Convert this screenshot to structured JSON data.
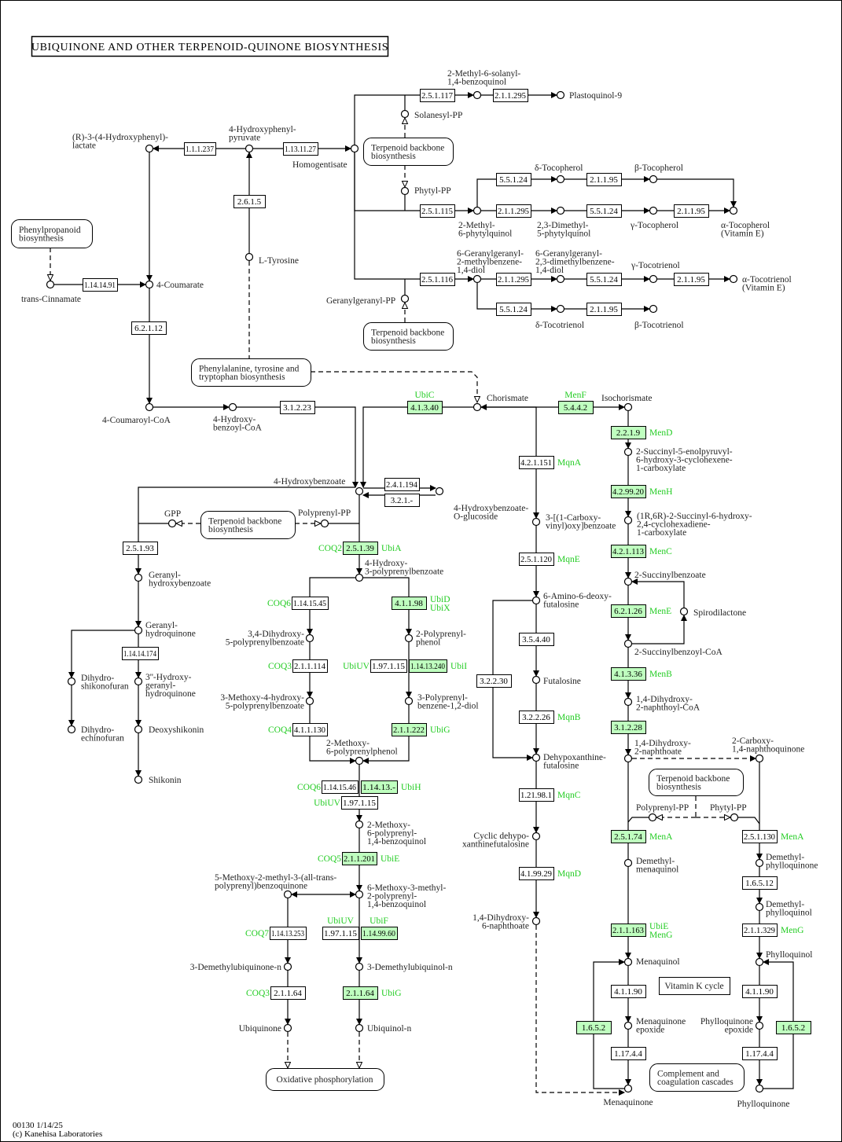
{
  "title": "UBIQUINONE AND OTHER TERPENOID-QUINONE BIOSYNTHESIS",
  "footer": {
    "id_date": "00130 1/14/25",
    "copyright": "(c) Kanehisa Laboratories"
  },
  "colors": {
    "highlight_fill": "#bfffbf",
    "gene_text": "#22cc22",
    "line": "#000000",
    "border": "#000000"
  },
  "enzymes": [
    {
      "ec": "1.1.1.237",
      "highlighted": false,
      "genes": []
    },
    {
      "ec": "1.13.11.27",
      "highlighted": false,
      "genes": []
    },
    {
      "ec": "2.6.1.5",
      "highlighted": false,
      "genes": []
    },
    {
      "ec": "1.14.14.91",
      "highlighted": false,
      "genes": []
    },
    {
      "ec": "6.2.1.12",
      "highlighted": false,
      "genes": []
    },
    {
      "ec": "3.1.2.23",
      "highlighted": false,
      "genes": []
    },
    {
      "ec": "4.1.3.40",
      "highlighted": true,
      "genes": [
        "UbiC"
      ]
    },
    {
      "ec": "5.4.4.2",
      "highlighted": true,
      "genes": [
        "MenF"
      ]
    },
    {
      "ec": "2.5.1.117",
      "highlighted": false,
      "genes": []
    },
    {
      "ec": "2.1.1.295",
      "highlighted": false,
      "genes": []
    },
    {
      "ec": "2.5.1.115",
      "highlighted": false,
      "genes": []
    },
    {
      "ec": "2.1.1.295",
      "highlighted": false,
      "genes": []
    },
    {
      "ec": "5.5.1.24",
      "highlighted": false,
      "genes": []
    },
    {
      "ec": "2.1.1.95",
      "highlighted": false,
      "genes": []
    },
    {
      "ec": "5.5.1.24",
      "highlighted": false,
      "genes": []
    },
    {
      "ec": "2.1.1.95",
      "highlighted": false,
      "genes": []
    },
    {
      "ec": "2.5.1.116",
      "highlighted": false,
      "genes": []
    },
    {
      "ec": "2.1.1.295",
      "highlighted": false,
      "genes": []
    },
    {
      "ec": "5.5.1.24",
      "highlighted": false,
      "genes": []
    },
    {
      "ec": "2.1.1.95",
      "highlighted": false,
      "genes": []
    },
    {
      "ec": "5.5.1.24",
      "highlighted": false,
      "genes": []
    },
    {
      "ec": "2.1.1.95",
      "highlighted": false,
      "genes": []
    },
    {
      "ec": "2.4.1.194",
      "highlighted": false,
      "genes": []
    },
    {
      "ec": "3.2.1.-",
      "highlighted": false,
      "genes": []
    },
    {
      "ec": "2.5.1.39",
      "highlighted": true,
      "genes": [
        "COQ2",
        "UbiA"
      ]
    },
    {
      "ec": "2.5.1.93",
      "highlighted": false,
      "genes": []
    },
    {
      "ec": "1.14.15.45",
      "highlighted": false,
      "genes": [
        "COQ6"
      ]
    },
    {
      "ec": "4.1.1.98",
      "highlighted": true,
      "genes": [
        "UbiD",
        "UbiX"
      ]
    },
    {
      "ec": "1.14.14.174",
      "highlighted": false,
      "genes": []
    },
    {
      "ec": "2.1.1.114",
      "highlighted": false,
      "genes": [
        "COQ3"
      ]
    },
    {
      "ec": "1.97.1.15",
      "highlighted": false,
      "genes": [
        "UbiUV"
      ]
    },
    {
      "ec": "1.14.13.240",
      "highlighted": true,
      "genes": [
        "UbiI"
      ]
    },
    {
      "ec": "4.1.1.130",
      "highlighted": false,
      "genes": [
        "COQ4"
      ]
    },
    {
      "ec": "2.1.1.222",
      "highlighted": true,
      "genes": [
        "UbiG"
      ]
    },
    {
      "ec": "1.14.15.46",
      "highlighted": false,
      "genes": [
        "COQ6"
      ]
    },
    {
      "ec": "1.14.13.-",
      "highlighted": true,
      "genes": [
        "UbiH"
      ]
    },
    {
      "ec": "1.97.1.15",
      "highlighted": false,
      "genes": [
        "UbiUV"
      ]
    },
    {
      "ec": "2.1.1.201",
      "highlighted": true,
      "genes": [
        "COQ5",
        "UbiE"
      ]
    },
    {
      "ec": "1.14.13.253",
      "highlighted": false,
      "genes": [
        "COQ7"
      ]
    },
    {
      "ec": "1.97.1.15",
      "highlighted": false,
      "genes": [
        "UbiUV"
      ]
    },
    {
      "ec": "1.14.99.60",
      "highlighted": true,
      "genes": [
        "UbiF"
      ]
    },
    {
      "ec": "2.1.1.64",
      "highlighted": false,
      "genes": [
        "COQ3"
      ]
    },
    {
      "ec": "2.1.1.64",
      "highlighted": true,
      "genes": [
        "UbiG"
      ]
    },
    {
      "ec": "4.2.1.151",
      "highlighted": false,
      "genes": [
        "MqnA"
      ]
    },
    {
      "ec": "2.5.1.120",
      "highlighted": false,
      "genes": [
        "MqnE"
      ]
    },
    {
      "ec": "3.5.4.40",
      "highlighted": false,
      "genes": []
    },
    {
      "ec": "3.2.2.30",
      "highlighted": false,
      "genes": []
    },
    {
      "ec": "3.2.2.26",
      "highlighted": false,
      "genes": [
        "MqnB"
      ]
    },
    {
      "ec": "1.21.98.1",
      "highlighted": false,
      "genes": [
        "MqnC"
      ]
    },
    {
      "ec": "4.1.99.29",
      "highlighted": false,
      "genes": [
        "MqnD"
      ]
    },
    {
      "ec": "2.2.1.9",
      "highlighted": true,
      "genes": [
        "MenD"
      ]
    },
    {
      "ec": "4.2.99.20",
      "highlighted": true,
      "genes": [
        "MenH"
      ]
    },
    {
      "ec": "4.2.1.113",
      "highlighted": true,
      "genes": [
        "MenC"
      ]
    },
    {
      "ec": "6.2.1.26",
      "highlighted": true,
      "genes": [
        "MenE"
      ]
    },
    {
      "ec": "4.1.3.36",
      "highlighted": true,
      "genes": [
        "MenB"
      ]
    },
    {
      "ec": "3.1.2.28",
      "highlighted": true,
      "genes": []
    },
    {
      "ec": "2.5.1.74",
      "highlighted": true,
      "genes": [
        "MenA"
      ]
    },
    {
      "ec": "2.5.1.130",
      "highlighted": false,
      "genes": [
        "MenA"
      ]
    },
    {
      "ec": "1.6.5.12",
      "highlighted": false,
      "genes": []
    },
    {
      "ec": "2.1.1.163",
      "highlighted": true,
      "genes": [
        "UbiE",
        "MenG"
      ]
    },
    {
      "ec": "2.1.1.329",
      "highlighted": false,
      "genes": [
        "MenG"
      ]
    },
    {
      "ec": "4.1.1.90",
      "highlighted": false,
      "genes": []
    },
    {
      "ec": "4.1.1.90",
      "highlighted": false,
      "genes": []
    },
    {
      "ec": "1.6.5.2",
      "highlighted": true,
      "genes": []
    },
    {
      "ec": "1.6.5.2",
      "highlighted": true,
      "genes": []
    },
    {
      "ec": "1.17.4.4",
      "highlighted": false,
      "genes": []
    },
    {
      "ec": "1.17.4.4",
      "highlighted": false,
      "genes": []
    }
  ],
  "compounds": [
    {
      "name": [
        "(R)-3-(4-Hydroxyphenyl)-",
        "lactate"
      ]
    },
    {
      "name": [
        "4-Hydroxyphenyl-",
        "pyruvate"
      ]
    },
    {
      "name": [
        "Homogentisate"
      ]
    },
    {
      "name": [
        "L-Tyrosine"
      ]
    },
    {
      "name": [
        "trans-Cinnamate"
      ]
    },
    {
      "name": [
        "4-Coumarate"
      ]
    },
    {
      "name": [
        "4-Coumaroyl-CoA"
      ]
    },
    {
      "name": [
        "4-Hydroxy-",
        "benzoyl-CoA"
      ]
    },
    {
      "name": [
        "Chorismate"
      ]
    },
    {
      "name": [
        "Isochorismate"
      ]
    },
    {
      "name": [
        "2-Methyl-6-solanyl-",
        "1,4-benzoquinol"
      ]
    },
    {
      "name": [
        "Plastoquinol-9"
      ]
    },
    {
      "name": [
        "Solanesyl-PP"
      ]
    },
    {
      "name": [
        "Phytyl-PP"
      ]
    },
    {
      "name": [
        "2-Methyl-",
        "6-phytylquinol"
      ]
    },
    {
      "name": [
        "2,3-Dimethyl-",
        "5-phytylquinol"
      ]
    },
    {
      "name": [
        "γ-Tocopherol"
      ]
    },
    {
      "name": [
        "α-Tocopherol",
        "(Vitamin E)"
      ]
    },
    {
      "name": [
        "δ-Tocopherol"
      ]
    },
    {
      "name": [
        "β-Tocopherol"
      ]
    },
    {
      "name": [
        "Geranylgeranyl-PP"
      ]
    },
    {
      "name": [
        "6-Geranylgeranyl-",
        "2-methylbenzene-",
        "1,4-diol"
      ]
    },
    {
      "name": [
        "6-Geranylgeranyl-",
        "2,3-dimethylbenzene-",
        "1,4-diol"
      ]
    },
    {
      "name": [
        "γ-Tocotrienol"
      ]
    },
    {
      "name": [
        "α-Tocotrienol",
        "(Vitamin E)"
      ]
    },
    {
      "name": [
        "δ-Tocotrienol"
      ]
    },
    {
      "name": [
        "β-Tocotrienol"
      ]
    },
    {
      "name": [
        "4-Hydroxybenzoate"
      ]
    },
    {
      "name": [
        "4-Hydroxybenzoate-",
        "O-glucoside"
      ]
    },
    {
      "name": [
        "GPP"
      ]
    },
    {
      "name": [
        "Polyprenyl-PP"
      ]
    },
    {
      "name": [
        "Geranyl-",
        "hydroxybenzoate"
      ]
    },
    {
      "name": [
        "4-Hydroxy-",
        "3-polyprenylbenzoate"
      ]
    },
    {
      "name": [
        "Geranyl-",
        "hydroquinone"
      ]
    },
    {
      "name": [
        "Dihydro-",
        "shikonofuran"
      ]
    },
    {
      "name": [
        "3''-Hydroxy-",
        "geranyl-",
        "hydroquinone"
      ]
    },
    {
      "name": [
        "Dihydro-",
        "echinofuran"
      ]
    },
    {
      "name": [
        "Deoxyshikonin"
      ]
    },
    {
      "name": [
        "Shikonin"
      ]
    },
    {
      "name": [
        "3,4-Dihydroxy-",
        "5-polyprenylbenzoate"
      ]
    },
    {
      "name": [
        "2-Polyprenyl-",
        "phenol"
      ]
    },
    {
      "name": [
        "3-Methoxy-4-hydroxy-",
        "5-polyprenylbenzoate"
      ]
    },
    {
      "name": [
        "3-Polyprenyl-",
        "benzene-1,2-diol"
      ]
    },
    {
      "name": [
        "2-Methoxy-",
        "6-polyprenylphenol"
      ]
    },
    {
      "name": [
        "2-Methoxy-",
        "6-polyprenyl-",
        "1,4-benzoquinol"
      ]
    },
    {
      "name": [
        "5-Methoxy-2-methyl-3-(all-trans-",
        "polyprenyl)benzoquinone"
      ]
    },
    {
      "name": [
        "6-Methoxy-3-methyl-",
        "2-polyprenyl-",
        "1,4-benzoquinol"
      ]
    },
    {
      "name": [
        "3-Demethylubiquinone-n"
      ]
    },
    {
      "name": [
        "3-Demethylubiquinol-n"
      ]
    },
    {
      "name": [
        "Ubiquinone"
      ]
    },
    {
      "name": [
        "Ubiquinol-n"
      ]
    },
    {
      "name": [
        "3-[(1-Carboxy-",
        "vinyl)oxy]benzoate"
      ]
    },
    {
      "name": [
        "6-Amino-6-deoxy-",
        "futalosine"
      ]
    },
    {
      "name": [
        "Futalosine"
      ]
    },
    {
      "name": [
        "Dehypoxanthine-",
        "futalosine"
      ]
    },
    {
      "name": [
        "Cyclic dehypo-",
        "xanthinefutalosine"
      ]
    },
    {
      "name": [
        "1,4-Dihydroxy-",
        "6-naphthoate"
      ]
    },
    {
      "name": [
        "2-Succinyl-5-enolpyruvyl-",
        "6-hydroxy-3-cyclohexene-",
        "1-carboxylate"
      ]
    },
    {
      "name": [
        "(1R,6R)-2-Succinyl-6-hydroxy-",
        "2,4-cyclohexadiene-",
        "1-carboxylate"
      ]
    },
    {
      "name": [
        "2-Succinylbenzoate"
      ]
    },
    {
      "name": [
        "Spirodilactone"
      ]
    },
    {
      "name": [
        "2-Succinylbenzoyl-CoA"
      ]
    },
    {
      "name": [
        "1,4-Dihydroxy-",
        "2-naphthoyl-CoA"
      ]
    },
    {
      "name": [
        "1,4-Dihydroxy-",
        "2-naphthoate"
      ]
    },
    {
      "name": [
        "2-Carboxy-",
        "1,4-naphthoquinone"
      ]
    },
    {
      "name": [
        "Polyprenyl-PP"
      ]
    },
    {
      "name": [
        "Phytyl-PP"
      ]
    },
    {
      "name": [
        "Demethyl-",
        "menaquinol"
      ]
    },
    {
      "name": [
        "Demethyl-",
        "phylloquinone"
      ]
    },
    {
      "name": [
        "Demethyl-",
        "phylloquinol"
      ]
    },
    {
      "name": [
        "Menaquinol"
      ]
    },
    {
      "name": [
        "Phylloquinol"
      ]
    },
    {
      "name": [
        "Menaquinone",
        "epoxide"
      ]
    },
    {
      "name": [
        "Phylloquinone",
        "epoxide"
      ]
    },
    {
      "name": [
        "Menaquinone"
      ]
    },
    {
      "name": [
        "Phylloquinone"
      ]
    }
  ],
  "maps": [
    {
      "name": [
        "Phenylpropanoid",
        "biosynthesis"
      ]
    },
    {
      "name": [
        "Terpenoid backbone",
        "biosynthesis"
      ]
    },
    {
      "name": [
        "Terpenoid backbone",
        "biosynthesis"
      ]
    },
    {
      "name": [
        "Phenylalanine, tyrosine and",
        "tryptophan biosynthesis"
      ]
    },
    {
      "name": [
        "Terpenoid backbone",
        "biosynthesis"
      ]
    },
    {
      "name": [
        "Terpenoid backbone",
        "biosynthesis"
      ]
    },
    {
      "name": [
        "Vitamin K cycle"
      ]
    },
    {
      "name": [
        "Oxidative phosphorylation"
      ]
    },
    {
      "name": [
        "Complement and",
        "coagulation cascades"
      ]
    }
  ]
}
